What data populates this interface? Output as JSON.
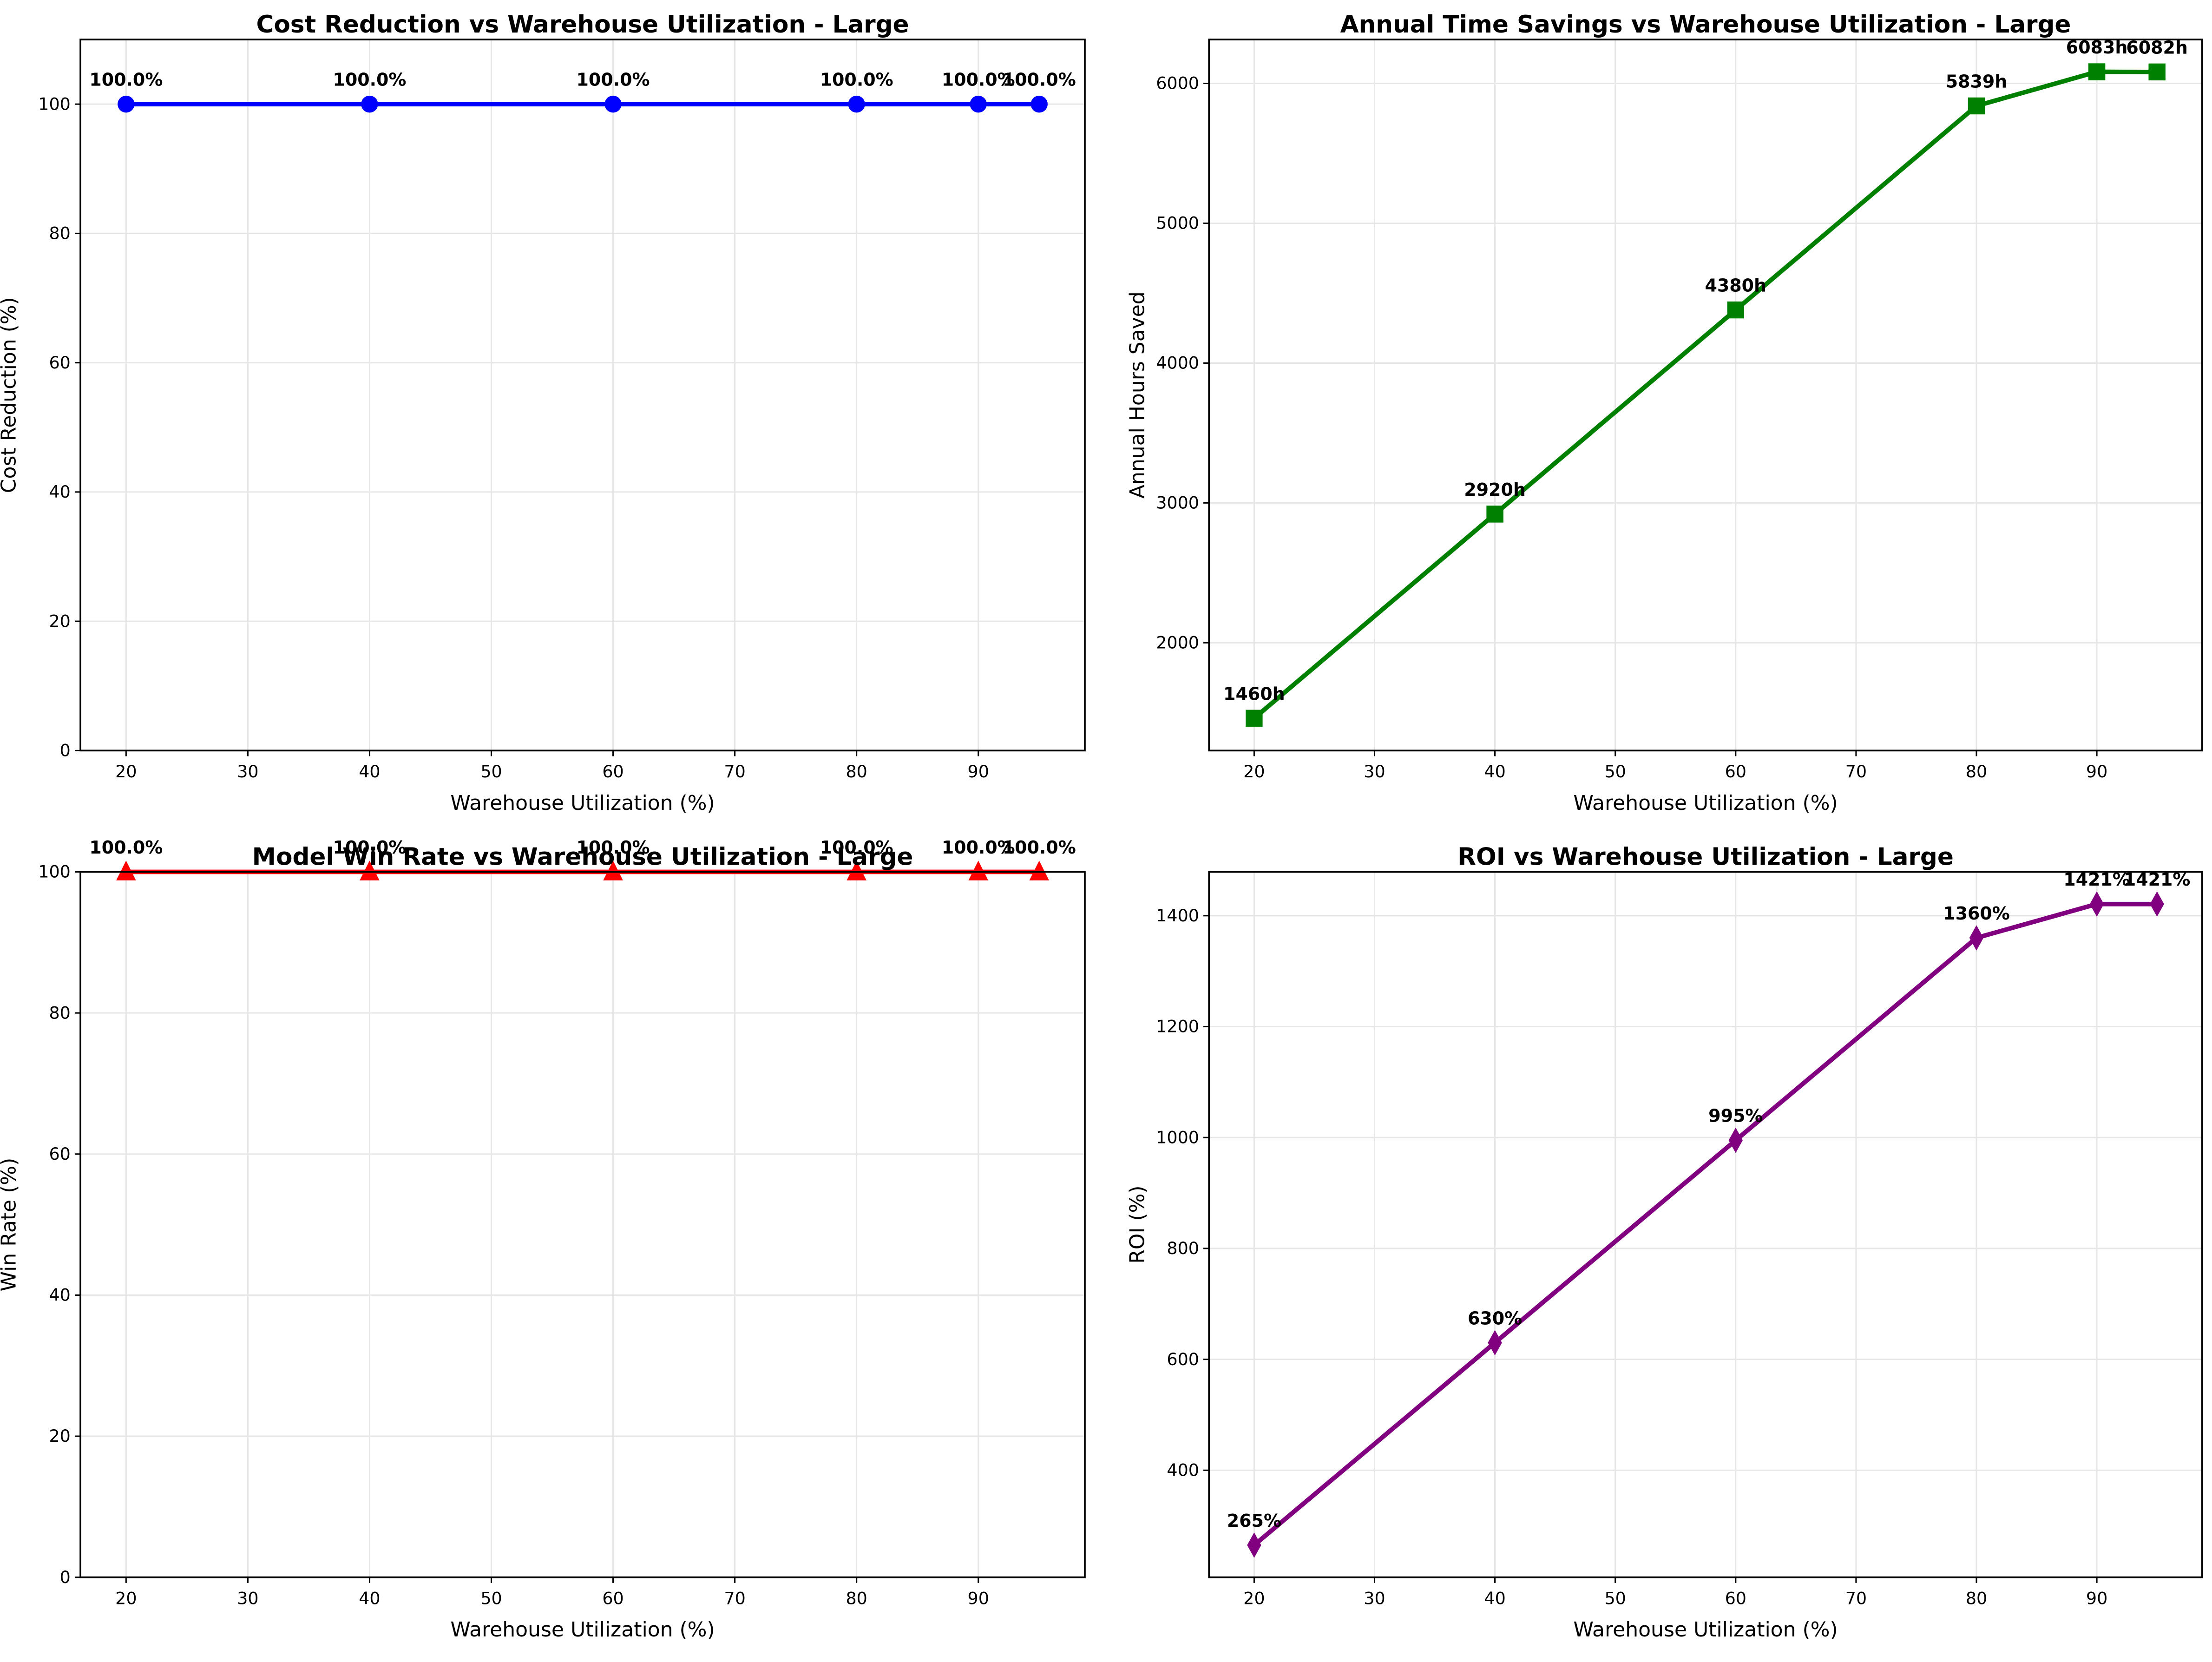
{
  "figure": {
    "background": "#ffffff"
  },
  "chart_data": [
    {
      "id": "cost",
      "type": "line",
      "title": "Cost Reduction vs Warehouse Utilization - Large",
      "xlabel": "Warehouse Utilization (%)",
      "ylabel": "Cost Reduction (%)",
      "x": [
        20,
        40,
        60,
        80,
        90,
        95
      ],
      "values": [
        100,
        100,
        100,
        100,
        100,
        100
      ],
      "labels": [
        "100.0%",
        "100.0%",
        "100.0%",
        "100.0%",
        "100.0%",
        "100.0%"
      ],
      "color": "#0000ff",
      "marker": "circle",
      "xlim": [
        16.25,
        98.75
      ],
      "ylim": [
        0,
        110
      ],
      "xticks": [
        20,
        30,
        40,
        50,
        60,
        70,
        80,
        90
      ],
      "yticks": [
        0,
        20,
        40,
        60,
        80,
        100
      ],
      "grid": true
    },
    {
      "id": "time",
      "type": "line",
      "title": "Annual Time Savings vs Warehouse Utilization - Large",
      "xlabel": "Warehouse Utilization (%)",
      "ylabel": "Annual Hours Saved",
      "x": [
        20,
        40,
        60,
        80,
        90,
        95
      ],
      "values": [
        1460,
        2920,
        4380,
        5839,
        6083,
        6082
      ],
      "labels": [
        "1460h",
        "2920h",
        "4380h",
        "5839h",
        "6083h",
        "6082h"
      ],
      "color": "#008000",
      "marker": "square",
      "xlim": [
        16.25,
        98.75
      ],
      "ylim": [
        1229,
        6314
      ],
      "xticks": [
        20,
        30,
        40,
        50,
        60,
        70,
        80,
        90
      ],
      "yticks": [
        2000,
        3000,
        4000,
        5000,
        6000
      ],
      "grid": true
    },
    {
      "id": "win",
      "type": "line",
      "title": "Model Win Rate vs Warehouse Utilization - Large",
      "xlabel": "Warehouse Utilization (%)",
      "ylabel": "Win Rate (%)",
      "x": [
        20,
        40,
        60,
        80,
        90,
        95
      ],
      "values": [
        100,
        100,
        100,
        100,
        100,
        100
      ],
      "labels": [
        "100.0%",
        "100.0%",
        "100.0%",
        "100.0%",
        "100.0%",
        "100.0%"
      ],
      "color": "#ff0000",
      "marker": "triangle",
      "xlim": [
        16.25,
        98.75
      ],
      "ylim": [
        0,
        100
      ],
      "xticks": [
        20,
        30,
        40,
        50,
        60,
        70,
        80,
        90
      ],
      "yticks": [
        0,
        20,
        40,
        60,
        80,
        100
      ],
      "grid": true
    },
    {
      "id": "roi",
      "type": "line",
      "title": "ROI vs Warehouse Utilization - Large",
      "xlabel": "Warehouse Utilization (%)",
      "ylabel": "ROI (%)",
      "x": [
        20,
        40,
        60,
        80,
        90,
        95
      ],
      "values": [
        265,
        630,
        995,
        1360,
        1421,
        1421
      ],
      "labels": [
        "265%",
        "630%",
        "995%",
        "1360%",
        "1421%",
        "1421%"
      ],
      "color": "#800080",
      "marker": "diamond",
      "xlim": [
        16.25,
        98.75
      ],
      "ylim": [
        207,
        1479
      ],
      "xticks": [
        20,
        30,
        40,
        50,
        60,
        70,
        80,
        90
      ],
      "yticks": [
        400,
        600,
        800,
        1000,
        1200,
        1400
      ],
      "grid": true
    }
  ]
}
